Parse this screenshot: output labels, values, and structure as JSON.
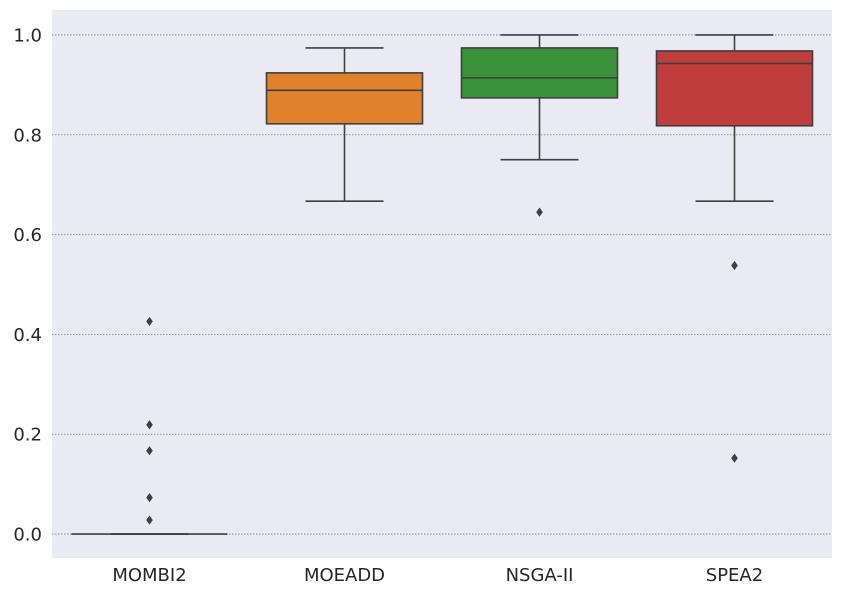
{
  "chart_data": {
    "type": "box",
    "title": "",
    "xlabel": "",
    "ylabel": "",
    "ylim": [
      -0.048,
      1.05
    ],
    "y_ticks": [
      "0.0",
      "0.2",
      "0.4",
      "0.6",
      "0.8",
      "1.0"
    ],
    "grid": true,
    "background": "#EAEAF2",
    "categories": [
      "MOMBI2",
      "MOEADD",
      "NSGA-II",
      "SPEA2"
    ],
    "boxes": [
      {
        "name": "MOMBI2",
        "color": "#1f77b4",
        "whisker_low": 0.0,
        "q1": 0.0,
        "median": 0.0,
        "q3": 0.0,
        "whisker_high": 0.0,
        "outliers": [
          0.426,
          0.219,
          0.167,
          0.073,
          0.028
        ]
      },
      {
        "name": "MOEADD",
        "color": "#E1812C",
        "whisker_low": 0.667,
        "q1": 0.822,
        "median": 0.889,
        "q3": 0.924,
        "whisker_high": 0.974,
        "outliers": []
      },
      {
        "name": "NSGA-II",
        "color": "#3A923A",
        "whisker_low": 0.75,
        "q1": 0.874,
        "median": 0.914,
        "q3": 0.974,
        "whisker_high": 1.0,
        "outliers": [
          0.645
        ]
      },
      {
        "name": "SPEA2",
        "color": "#C03D3E",
        "whisker_low": 0.667,
        "q1": 0.818,
        "median": 0.943,
        "q3": 0.968,
        "whisker_high": 1.0,
        "outliers": [
          0.538,
          0.152
        ]
      }
    ]
  }
}
